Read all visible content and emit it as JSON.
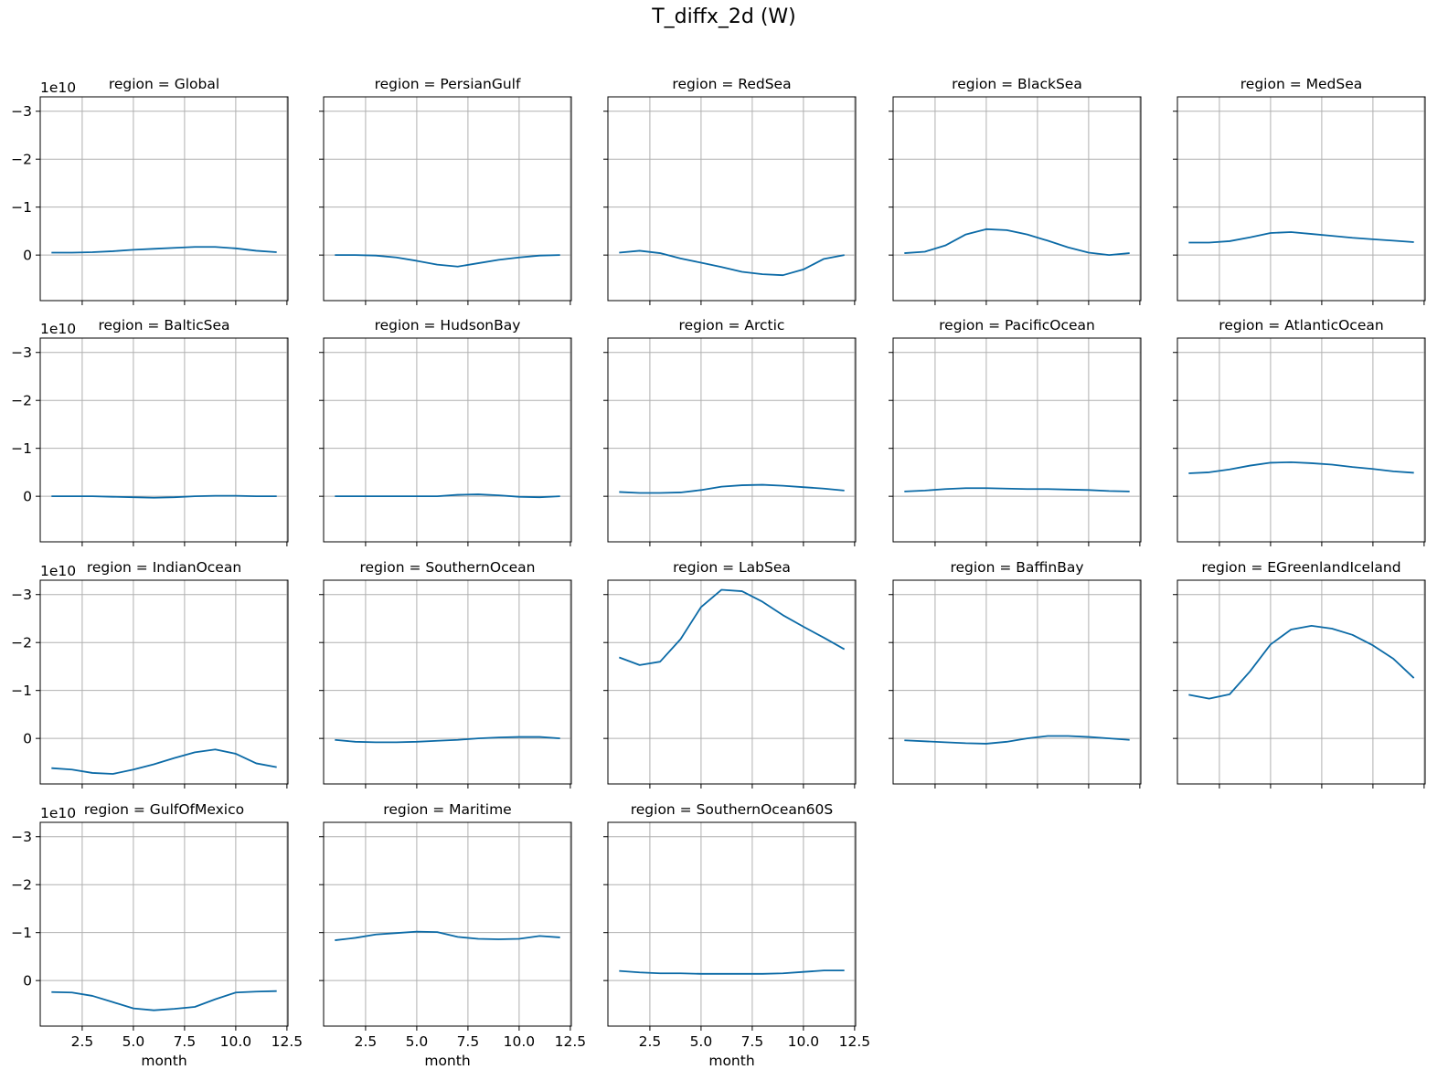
{
  "figure": {
    "title": "T_diffx_2d (W)"
  },
  "chart_data": {
    "type": "line",
    "title": "T_diffx_2d (W)",
    "facet_prefix": "region = ",
    "xlabel": "month",
    "ylabel": "",
    "y_offset_label": "1e10",
    "y_scale_factor": 10000000000.0,
    "y_inverted": true,
    "xlim": [
      0.45,
      12.55
    ],
    "ylim_scaled": [
      -3.3,
      0.95
    ],
    "x_ticks": [
      2.5,
      5.0,
      7.5,
      10.0,
      12.5
    ],
    "x_tick_labels": [
      "2.5",
      "5.0",
      "7.5",
      "10.0",
      "12.5"
    ],
    "y_ticks": [
      -3,
      -2,
      -1,
      0
    ],
    "y_tick_labels": [
      "−3",
      "−2",
      "−1",
      "0"
    ],
    "grid": true,
    "line_color": "#0b6aa6",
    "month": [
      1,
      2,
      3,
      4,
      5,
      6,
      7,
      8,
      9,
      10,
      11,
      12
    ],
    "series": [
      {
        "name": "Global",
        "values": [
          -0.05,
          -0.05,
          -0.06,
          -0.08,
          -0.11,
          -0.13,
          -0.15,
          -0.17,
          -0.17,
          -0.14,
          -0.09,
          -0.06
        ]
      },
      {
        "name": "PersianGulf",
        "values": [
          0.0,
          0.0,
          0.01,
          0.05,
          0.12,
          0.2,
          0.24,
          0.17,
          0.1,
          0.05,
          0.01,
          0.0
        ]
      },
      {
        "name": "RedSea",
        "values": [
          -0.05,
          -0.09,
          -0.04,
          0.07,
          0.16,
          0.25,
          0.35,
          0.4,
          0.42,
          0.3,
          0.08,
          0.0
        ]
      },
      {
        "name": "BlackSea",
        "values": [
          -0.04,
          -0.07,
          -0.2,
          -0.43,
          -0.54,
          -0.52,
          -0.43,
          -0.3,
          -0.16,
          -0.05,
          0.0,
          -0.04
        ]
      },
      {
        "name": "MedSea",
        "values": [
          -0.26,
          -0.26,
          -0.29,
          -0.37,
          -0.46,
          -0.48,
          -0.44,
          -0.4,
          -0.36,
          -0.33,
          -0.3,
          -0.27
        ]
      },
      {
        "name": "BalticSea",
        "values": [
          0.0,
          0.0,
          0.0,
          0.01,
          0.02,
          0.03,
          0.02,
          0.0,
          -0.01,
          -0.01,
          0.0,
          0.0
        ]
      },
      {
        "name": "HudsonBay",
        "values": [
          0.0,
          0.0,
          0.0,
          0.0,
          0.0,
          0.0,
          -0.03,
          -0.04,
          -0.02,
          0.01,
          0.02,
          0.0
        ]
      },
      {
        "name": "Arctic",
        "values": [
          -0.09,
          -0.07,
          -0.07,
          -0.08,
          -0.13,
          -0.2,
          -0.23,
          -0.24,
          -0.22,
          -0.19,
          -0.16,
          -0.12
        ]
      },
      {
        "name": "PacificOcean",
        "values": [
          -0.1,
          -0.12,
          -0.15,
          -0.17,
          -0.17,
          -0.16,
          -0.15,
          -0.15,
          -0.14,
          -0.13,
          -0.11,
          -0.1
        ]
      },
      {
        "name": "AtlanticOcean",
        "values": [
          -0.48,
          -0.5,
          -0.56,
          -0.64,
          -0.7,
          -0.71,
          -0.69,
          -0.66,
          -0.61,
          -0.57,
          -0.52,
          -0.49
        ]
      },
      {
        "name": "IndianOcean",
        "values": [
          0.62,
          0.65,
          0.72,
          0.74,
          0.65,
          0.54,
          0.41,
          0.29,
          0.23,
          0.32,
          0.52,
          0.6
        ]
      },
      {
        "name": "SouthernOcean",
        "values": [
          0.03,
          0.07,
          0.08,
          0.08,
          0.07,
          0.05,
          0.03,
          0.0,
          -0.02,
          -0.03,
          -0.03,
          0.0
        ]
      },
      {
        "name": "LabSea",
        "values": [
          -1.69,
          -1.53,
          -1.6,
          -2.07,
          -2.74,
          -3.1,
          -3.07,
          -2.85,
          -2.57,
          -2.33,
          -2.1,
          -1.86
        ]
      },
      {
        "name": "BaffinBay",
        "values": [
          0.04,
          0.06,
          0.08,
          0.1,
          0.11,
          0.07,
          0.0,
          -0.05,
          -0.05,
          -0.03,
          0.0,
          0.03
        ]
      },
      {
        "name": "EGreenlandIceland",
        "values": [
          -0.91,
          -0.83,
          -0.92,
          -1.4,
          -1.96,
          -2.27,
          -2.35,
          -2.29,
          -2.16,
          -1.94,
          -1.66,
          -1.26
        ]
      },
      {
        "name": "GulfOfMexico",
        "values": [
          0.24,
          0.25,
          0.32,
          0.45,
          0.58,
          0.62,
          0.59,
          0.55,
          0.39,
          0.25,
          0.23,
          0.22
        ]
      },
      {
        "name": "Maritime",
        "values": [
          -0.84,
          -0.89,
          -0.96,
          -0.99,
          -1.02,
          -1.01,
          -0.91,
          -0.87,
          -0.86,
          -0.87,
          -0.93,
          -0.9
        ]
      },
      {
        "name": "SouthernOcean60S",
        "values": [
          -0.2,
          -0.17,
          -0.15,
          -0.15,
          -0.14,
          -0.14,
          -0.14,
          -0.14,
          -0.15,
          -0.18,
          -0.21,
          -0.21
        ]
      }
    ]
  }
}
